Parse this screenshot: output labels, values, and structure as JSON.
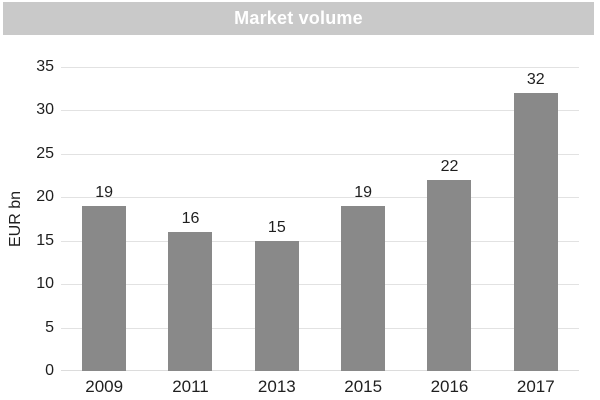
{
  "colors": {
    "title_bg": "#c9c9c9",
    "title_text": "#ffffff",
    "bar": "#898989",
    "gridline": "#e2e2e2",
    "axis_line": "#dcdcdc",
    "text": "#1f1f1f"
  },
  "chart_data": {
    "type": "bar",
    "title": "Market volume",
    "categories": [
      "2009",
      "2011",
      "2013",
      "2015",
      "2016",
      "2017"
    ],
    "values": [
      19,
      16,
      15,
      19,
      22,
      32
    ],
    "xlabel": "",
    "ylabel": "EUR bn",
    "ylim": [
      0,
      35
    ],
    "yticks": [
      0,
      5,
      10,
      15,
      20,
      25,
      30,
      35
    ],
    "grid": true,
    "bar_labels": true,
    "legend": false
  }
}
